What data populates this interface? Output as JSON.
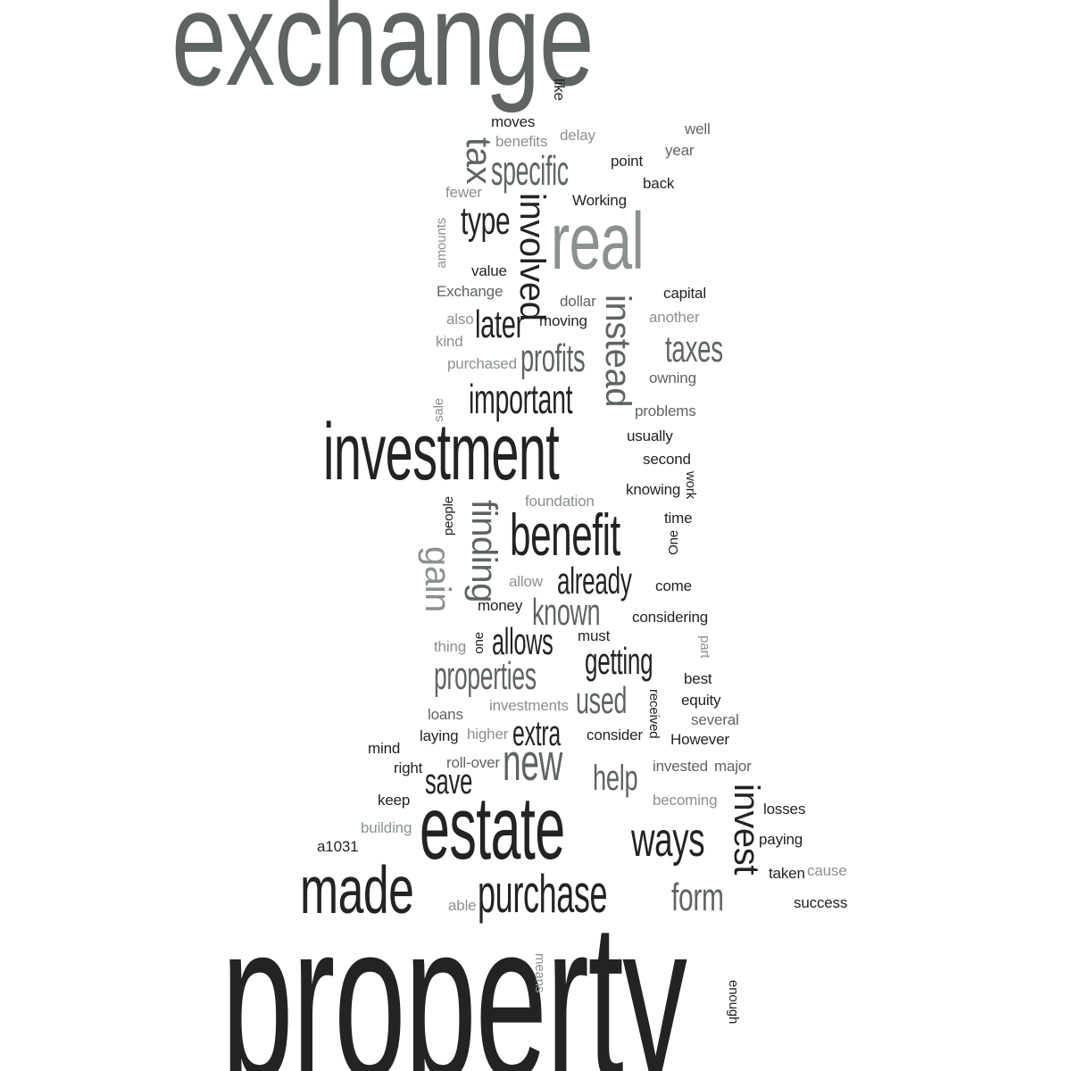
{
  "words": {
    "exchange": "exchange",
    "property": "property",
    "investment": "investment",
    "estate": "estate",
    "real": "real",
    "made": "made",
    "benefit": "benefit",
    "purchase": "purchase",
    "ways": "ways",
    "new": "new",
    "important": "important",
    "specific": "specific",
    "involved": "involved",
    "type": "type",
    "tax": "tax",
    "instead": "instead",
    "profits": "profits",
    "taxes": "taxes",
    "later": "later",
    "already": "already",
    "known": "known",
    "allows": "allows",
    "getting": "getting",
    "properties": "properties",
    "used": "used",
    "extra": "extra",
    "save": "save",
    "help": "help",
    "form": "form",
    "invest": "invest",
    "finding": "finding",
    "gain": "gain",
    "like": "like",
    "moves": "moves",
    "benefits": "benefits",
    "delay": "delay",
    "well": "well",
    "year": "year",
    "point": "point",
    "back": "back",
    "fewer": "fewer",
    "working": "Working",
    "amounts": "amounts",
    "value": "value",
    "exchange_small": "Exchange",
    "capital": "capital",
    "dollar": "dollar",
    "also": "also",
    "moving": "moving",
    "another": "another",
    "kind": "kind",
    "purchased": "purchased",
    "owning": "owning",
    "sale": "sale",
    "problems": "problems",
    "usually": "usually",
    "second": "second",
    "foundation": "foundation",
    "knowing": "knowing",
    "work": "work",
    "people": "people",
    "time": "time",
    "one_cap": "One",
    "allow": "allow",
    "come": "come",
    "money": "money",
    "considering": "considering",
    "thing": "thing",
    "one": "one",
    "must": "must",
    "part": "part",
    "best": "best",
    "equity": "equity",
    "received": "received",
    "investments": "investments",
    "loans": "loans",
    "several": "several",
    "mind": "mind",
    "laying": "laying",
    "higher": "higher",
    "consider": "consider",
    "however": "However",
    "right": "right",
    "roll_over": "roll-over",
    "invested": "invested",
    "major": "major",
    "keep": "keep",
    "becoming": "becoming",
    "losses": "losses",
    "building": "building",
    "paying": "paying",
    "a1031": "a1031",
    "taken": "taken",
    "cause": "cause",
    "able": "able",
    "success": "success",
    "means": "means",
    "enough": "enough"
  }
}
